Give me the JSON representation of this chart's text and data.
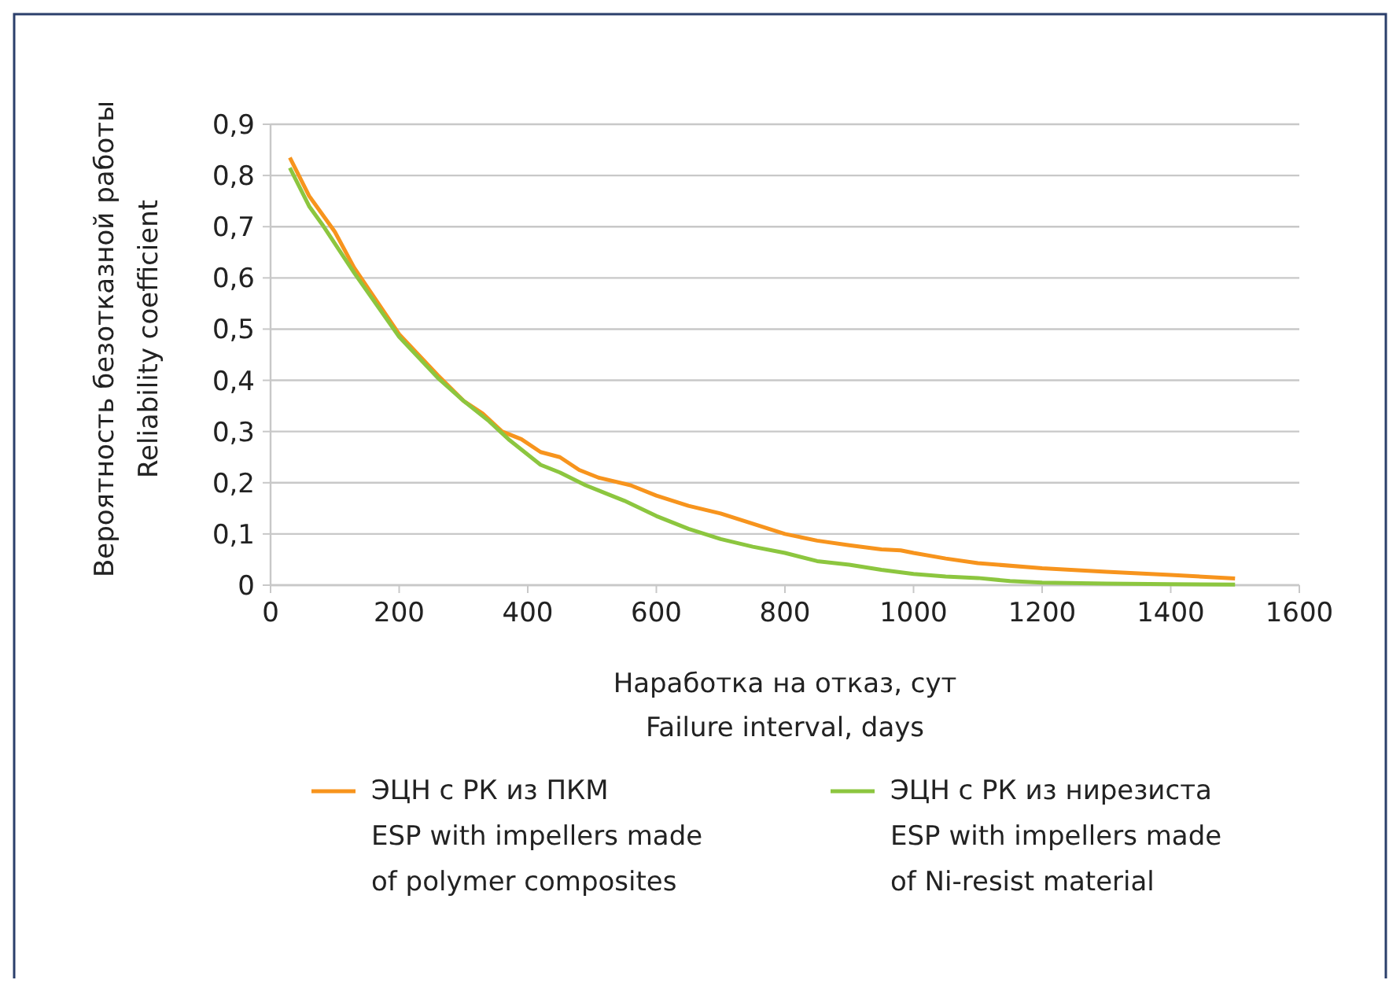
{
  "chart_data": {
    "type": "line",
    "xlabel": "Наработка на отказ, сут\nFailure interval, days",
    "ylabel": "Вероятность безотказной работы\nReliability coefficient",
    "xlim": [
      0,
      1600
    ],
    "xticks": [
      0,
      200,
      400,
      600,
      800,
      1000,
      1200,
      1400,
      1600
    ],
    "ylim": [
      0,
      0.9
    ],
    "yticks": [
      0,
      {
        "value": 0.1,
        "label": "0,1"
      },
      {
        "value": 0.2,
        "label": "0,2"
      },
      {
        "value": 0.3,
        "label": "0,3"
      },
      {
        "value": 0.4,
        "label": "0,4"
      },
      {
        "value": 0.5,
        "label": "0,5"
      },
      {
        "value": 0.6,
        "label": "0,6"
      },
      {
        "value": 0.7,
        "label": "0,7"
      },
      {
        "value": 0.8,
        "label": "0,8"
      },
      {
        "value": 0.9,
        "label": "0,9"
      }
    ],
    "grid": "y",
    "legend": "bottom",
    "marker": "none",
    "line_style": "solid",
    "series": [
      {
        "name": "ЭЦН с РК из ПКМ\nESP with impellers made\nof polymer composites",
        "color": "#f7941d",
        "x": [
          30,
          60,
          100,
          130,
          200,
          260,
          300,
          330,
          360,
          390,
          420,
          450,
          480,
          510,
          560,
          600,
          650,
          700,
          750,
          800,
          850,
          900,
          950,
          980,
          1000,
          1050,
          1100,
          1200,
          1300,
          1400,
          1500
        ],
        "values": [
          0.835,
          0.76,
          0.69,
          0.62,
          0.49,
          0.41,
          0.36,
          0.335,
          0.3,
          0.285,
          0.26,
          0.25,
          0.225,
          0.21,
          0.195,
          0.175,
          0.155,
          0.14,
          0.12,
          0.1,
          0.087,
          0.078,
          0.07,
          0.068,
          0.063,
          0.052,
          0.043,
          0.033,
          0.026,
          0.02,
          0.013
        ]
      },
      {
        "name": "ЭЦН с РК из нирезиста\nESP with impellers made\nof Ni-resist material",
        "color": "#8cc63f",
        "x": [
          30,
          60,
          80,
          130,
          200,
          260,
          300,
          340,
          370,
          400,
          420,
          450,
          490,
          550,
          600,
          650,
          700,
          750,
          800,
          850,
          900,
          950,
          1000,
          1050,
          1100,
          1150,
          1200,
          1300,
          1400,
          1500
        ],
        "values": [
          0.815,
          0.74,
          0.705,
          0.61,
          0.485,
          0.405,
          0.36,
          0.32,
          0.285,
          0.255,
          0.235,
          0.22,
          0.195,
          0.165,
          0.135,
          0.11,
          0.09,
          0.075,
          0.063,
          0.047,
          0.04,
          0.03,
          0.022,
          0.017,
          0.014,
          0.008,
          0.005,
          0.003,
          0.002,
          0.001
        ]
      }
    ]
  }
}
